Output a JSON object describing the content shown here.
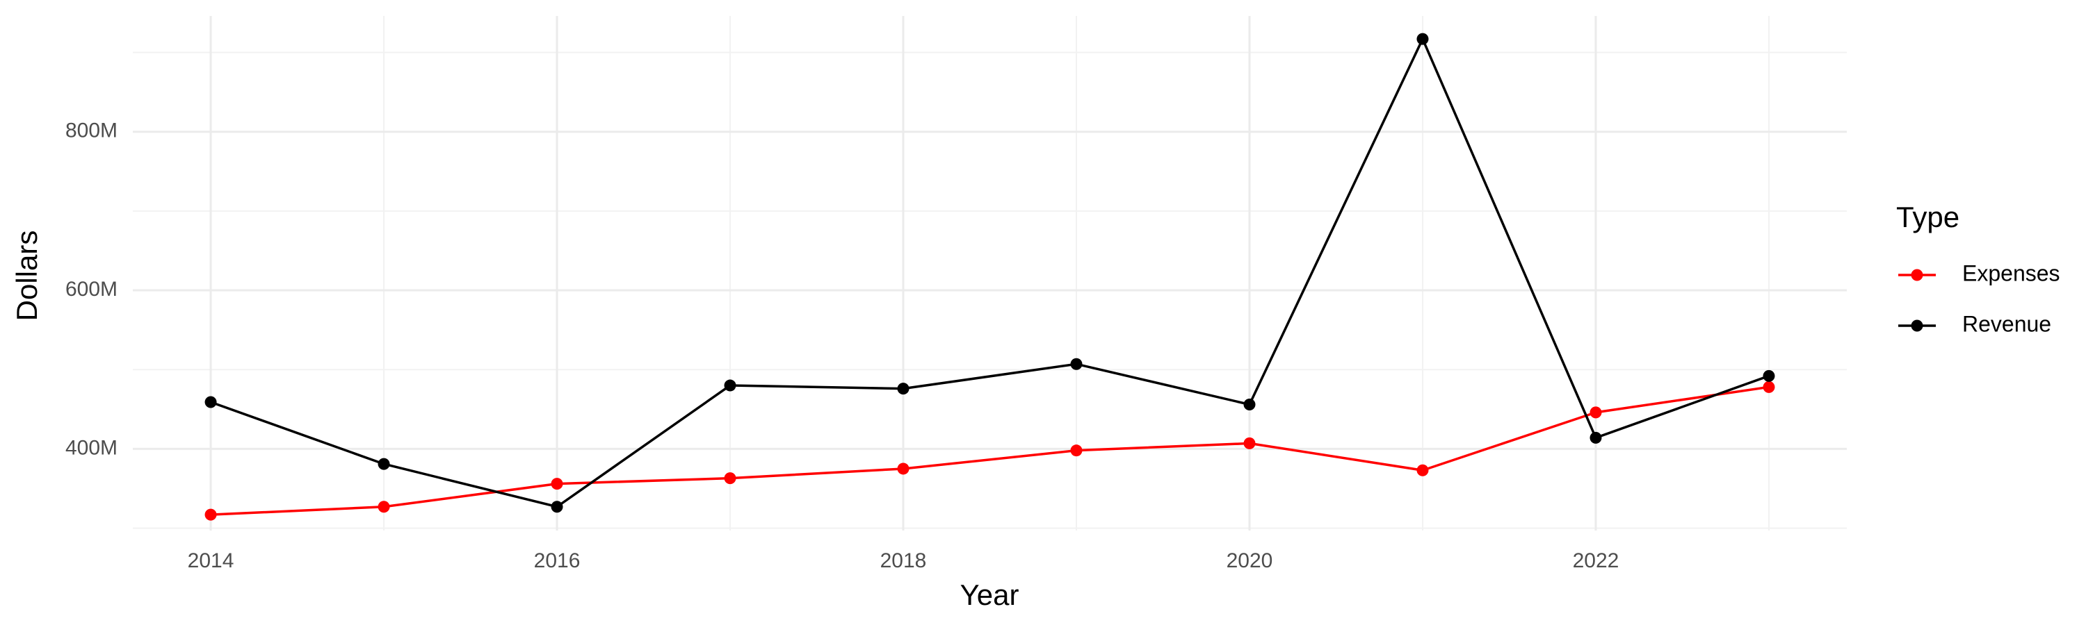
{
  "chart_data": {
    "type": "line",
    "x_label": "Year",
    "y_label": "Dollars",
    "legend_title": "Type",
    "legend": "right",
    "grid": true,
    "x": [
      2014,
      2015,
      2016,
      2017,
      2018,
      2019,
      2020,
      2021,
      2022,
      2023
    ],
    "series": [
      {
        "name": "Expenses",
        "color": "#ff0000",
        "values": [
          317000000,
          327000000,
          356000000,
          363000000,
          375000000,
          398000000,
          407000000,
          373000000,
          446000000,
          478000000
        ]
      },
      {
        "name": "Revenue",
        "color": "#000000",
        "values": [
          459000000,
          381000000,
          327000000,
          480000000,
          476000000,
          507000000,
          456000000,
          917000000,
          414000000,
          492000000
        ]
      }
    ],
    "xlim": [
      2013.55,
      2023.45
    ],
    "xticks": [
      2014,
      2016,
      2018,
      2020,
      2022
    ],
    "minor_xticks": [
      2015,
      2017,
      2019,
      2021,
      2023
    ],
    "ylim": [
      297000000,
      946000000
    ],
    "yticks": [
      {
        "value": 400000000,
        "label": "400M"
      },
      {
        "value": 600000000,
        "label": "600M"
      },
      {
        "value": 800000000,
        "label": "800M"
      }
    ],
    "minor_yticks": [
      300000000,
      500000000,
      700000000,
      900000000
    ]
  }
}
